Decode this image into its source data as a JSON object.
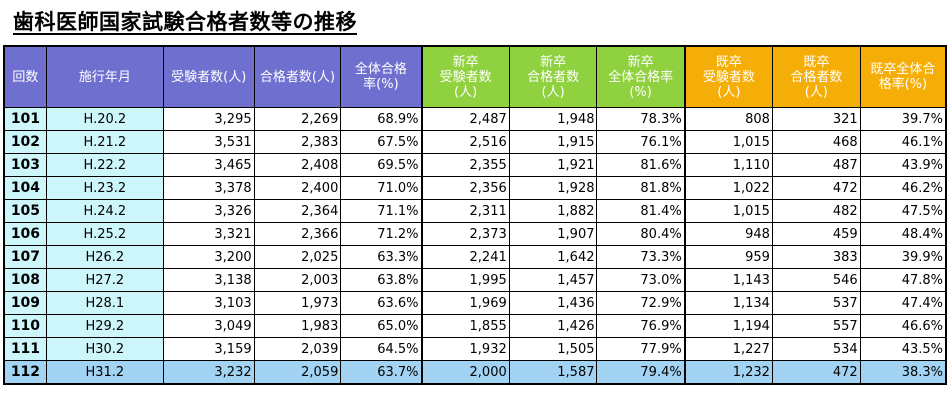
{
  "title": "歯科医師国家試験合格者数等の推移",
  "headers": [
    "回数",
    "施行年月",
    "受験者数(人)",
    "合格者数(人)",
    "全体合格\n率(%)",
    "新卒\n受験者数\n(人)",
    "新卒\n合格者数\n(人)",
    "新卒\n全体合格率\n(%)",
    "既卒\n受験者数\n(人)",
    "既卒\n合格者数\n(人)",
    "既卒全体合\n格率(%)"
  ],
  "header_colors": {
    "base": "#6f6fd0",
    "new_grad": "#8fd13e",
    "previous_grad": "#f5ae07"
  },
  "rows": [
    [
      "101",
      "H.20.2",
      "3,295",
      "2,269",
      "68.9%",
      "2,487",
      "1,948",
      "78.3%",
      "808",
      "321",
      "39.7%"
    ],
    [
      "102",
      "H.21.2",
      "3,531",
      "2,383",
      "67.5%",
      "2,516",
      "1,915",
      "76.1%",
      "1,015",
      "468",
      "46.1%"
    ],
    [
      "103",
      "H.22.2",
      "3,465",
      "2,408",
      "69.5%",
      "2,355",
      "1,921",
      "81.6%",
      "1,110",
      "487",
      "43.9%"
    ],
    [
      "104",
      "H.23.2",
      "3,378",
      "2,400",
      "71.0%",
      "2,356",
      "1,928",
      "81.8%",
      "1,022",
      "472",
      "46.2%"
    ],
    [
      "105",
      "H.24.2",
      "3,326",
      "2,364",
      "71.1%",
      "2,311",
      "1,882",
      "81.4%",
      "1,015",
      "482",
      "47.5%"
    ],
    [
      "106",
      "H.25.2",
      "3,321",
      "2,366",
      "71.2%",
      "2,373",
      "1,907",
      "80.4%",
      "948",
      "459",
      "48.4%"
    ],
    [
      "107",
      "H26.2",
      "3,200",
      "2,025",
      "63.3%",
      "2,241",
      "1,642",
      "73.3%",
      "959",
      "383",
      "39.9%"
    ],
    [
      "108",
      "H27.2",
      "3,138",
      "2,003",
      "63.8%",
      "1,995",
      "1,457",
      "73.0%",
      "1,143",
      "546",
      "47.8%"
    ],
    [
      "109",
      "H28.1",
      "3,103",
      "1,973",
      "63.6%",
      "1,969",
      "1,436",
      "72.9%",
      "1,134",
      "537",
      "47.4%"
    ],
    [
      "110",
      "H29.2",
      "3,049",
      "1,983",
      "65.0%",
      "1,855",
      "1,426",
      "76.9%",
      "1,194",
      "557",
      "46.6%"
    ],
    [
      "111",
      "H30.2",
      "3,159",
      "2,039",
      "64.5%",
      "1,932",
      "1,505",
      "77.9%",
      "1,227",
      "534",
      "43.5%"
    ],
    [
      "112",
      "H31.2",
      "3,232",
      "2,059",
      "63.7%",
      "2,000",
      "1,587",
      "79.4%",
      "1,232",
      "472",
      "38.3%"
    ]
  ]
}
